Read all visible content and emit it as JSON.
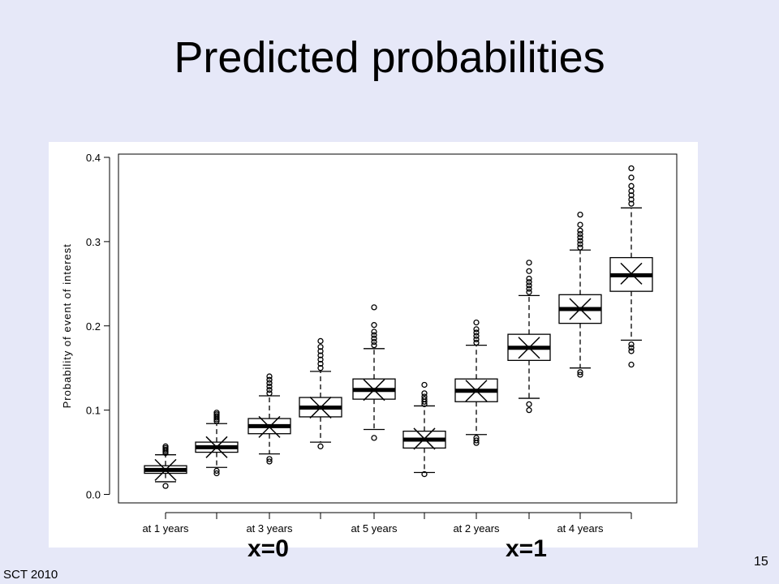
{
  "slide": {
    "title": "Predicted probabilities",
    "footer": "SCT 2010",
    "page_number": "15"
  },
  "group_labels": [
    "x=0",
    "x=1"
  ],
  "chart_data": {
    "type": "box",
    "title": "",
    "xlabel": "",
    "ylabel": "Probability of event of interest",
    "ylim": [
      0,
      0.4
    ],
    "yticks": [
      "0.0",
      "0.1",
      "0.2",
      "0.3",
      "0.4"
    ],
    "grid": false,
    "x_tick_labels": [
      "at 1 years",
      "at 3 years",
      "at 5 years",
      "at 2 years",
      "at 4 years"
    ],
    "boxes": [
      {
        "group": "x=0",
        "label": "at 1 years",
        "wlo": 0.015,
        "q1": 0.025,
        "median": 0.029,
        "q3": 0.034,
        "whi": 0.047,
        "mean": 0.029,
        "outliers": [
          0.01,
          0.049,
          0.051,
          0.053,
          0.055,
          0.057
        ]
      },
      {
        "group": "x=0",
        "label": "at 2 years",
        "wlo": 0.032,
        "q1": 0.05,
        "median": 0.056,
        "q3": 0.062,
        "whi": 0.084,
        "mean": 0.056,
        "outliers": [
          0.025,
          0.028,
          0.087,
          0.089,
          0.091,
          0.093,
          0.095,
          0.097
        ]
      },
      {
        "group": "x=0",
        "label": "at 3 years",
        "wlo": 0.048,
        "q1": 0.072,
        "median": 0.081,
        "q3": 0.09,
        "whi": 0.117,
        "mean": 0.08,
        "outliers": [
          0.039,
          0.042,
          0.12,
          0.124,
          0.128,
          0.132,
          0.136,
          0.14
        ]
      },
      {
        "group": "x=0",
        "label": "at 4 years",
        "wlo": 0.062,
        "q1": 0.092,
        "median": 0.103,
        "q3": 0.115,
        "whi": 0.146,
        "mean": 0.103,
        "outliers": [
          0.057,
          0.15,
          0.155,
          0.16,
          0.165,
          0.17,
          0.175,
          0.182
        ]
      },
      {
        "group": "x=0",
        "label": "at 5 years",
        "wlo": 0.077,
        "q1": 0.113,
        "median": 0.124,
        "q3": 0.137,
        "whi": 0.173,
        "mean": 0.124,
        "outliers": [
          0.067,
          0.177,
          0.181,
          0.185,
          0.189,
          0.193,
          0.201,
          0.222
        ]
      },
      {
        "group": "x=1",
        "label": "at 1 years",
        "wlo": 0.026,
        "q1": 0.055,
        "median": 0.065,
        "q3": 0.075,
        "whi": 0.105,
        "mean": 0.066,
        "outliers": [
          0.024,
          0.107,
          0.11,
          0.113,
          0.116,
          0.12,
          0.13
        ]
      },
      {
        "group": "x=1",
        "label": "at 2 years",
        "wlo": 0.071,
        "q1": 0.11,
        "median": 0.123,
        "q3": 0.137,
        "whi": 0.177,
        "mean": 0.123,
        "outliers": [
          0.061,
          0.064,
          0.067,
          0.18,
          0.184,
          0.188,
          0.192,
          0.196,
          0.204
        ]
      },
      {
        "group": "x=1",
        "label": "at 3 years",
        "wlo": 0.114,
        "q1": 0.159,
        "median": 0.174,
        "q3": 0.19,
        "whi": 0.236,
        "mean": 0.174,
        "outliers": [
          0.1,
          0.107,
          0.24,
          0.244,
          0.248,
          0.252,
          0.256,
          0.265,
          0.275
        ]
      },
      {
        "group": "x=1",
        "label": "at 4 years",
        "wlo": 0.15,
        "q1": 0.203,
        "median": 0.22,
        "q3": 0.237,
        "whi": 0.29,
        "mean": 0.22,
        "outliers": [
          0.142,
          0.145,
          0.293,
          0.297,
          0.301,
          0.305,
          0.309,
          0.313,
          0.32,
          0.332
        ]
      },
      {
        "group": "x=1",
        "label": "at 5 years",
        "wlo": 0.183,
        "q1": 0.241,
        "median": 0.26,
        "q3": 0.281,
        "whi": 0.34,
        "mean": 0.262,
        "outliers": [
          0.154,
          0.17,
          0.174,
          0.178,
          0.345,
          0.35,
          0.355,
          0.36,
          0.366,
          0.376,
          0.387
        ]
      }
    ]
  }
}
